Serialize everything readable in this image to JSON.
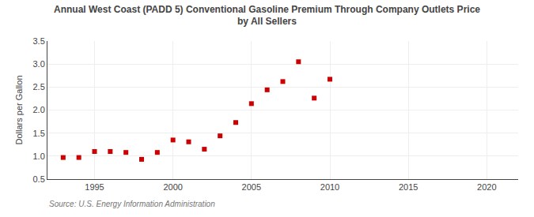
{
  "chart_data": {
    "type": "scatter",
    "title": "Annual West Coast (PADD 5) Conventional Gasoline Premium Through Company Outlets Price\nby All Sellers",
    "ylabel": "Dollars per Gallon",
    "source": "Source: U.S. Energy Information Administration",
    "x": [
      1993,
      1994,
      1995,
      1996,
      1997,
      1998,
      1999,
      2000,
      2001,
      2002,
      2003,
      2004,
      2005,
      2006,
      2007,
      2008,
      2009,
      2010
    ],
    "values": [
      0.97,
      0.97,
      1.1,
      1.1,
      1.08,
      0.93,
      1.08,
      1.35,
      1.31,
      1.15,
      1.44,
      1.73,
      2.14,
      2.44,
      2.62,
      3.05,
      2.26,
      2.67
    ],
    "color": "#cc0000",
    "marker": "square",
    "xlim": [
      1992,
      2022
    ],
    "ylim": [
      0.5,
      3.5
    ],
    "xticks": [
      1995,
      2000,
      2005,
      2010,
      2015,
      2020
    ],
    "yticks": [
      0.5,
      {
        "value": 1.0,
        "label": "1.0"
      },
      1.5,
      {
        "value": 2.0,
        "label": "2.0"
      },
      2.5,
      {
        "value": 3.0,
        "label": "3.0"
      },
      3.5
    ],
    "grid": true
  }
}
